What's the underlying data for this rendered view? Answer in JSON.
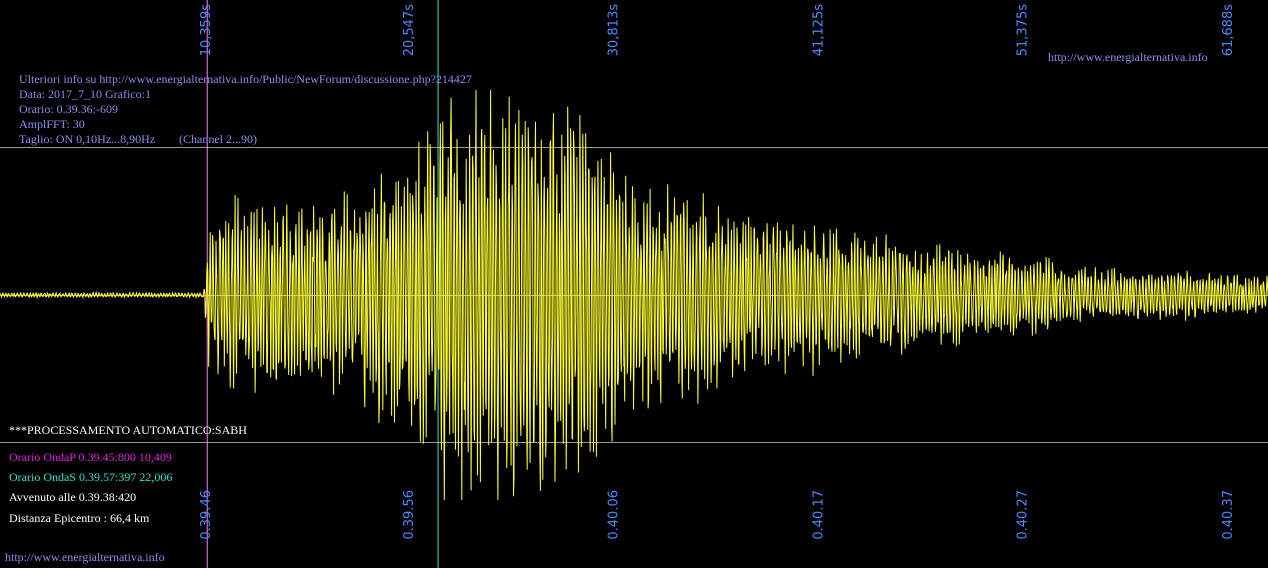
{
  "info": {
    "line1": "Ulteriori info su http://www.energialternativa.info/Public/NewForum/discussione.php?214427",
    "line2": "Data: 2017_7_10 Grafico:1",
    "line3": "Orario: 0.39.36:-609",
    "line4": "AmplFFT: 30",
    "line5": "Taglio: ON 0,10Hz...8,90Hz",
    "channel": "(Channel 2...90)"
  },
  "link_top": "http://www.energialternativa.info",
  "link_bottom": "http://www.energialternativa.info",
  "processing": "***PROCESSAMENTO AUTOMATICO:SABH",
  "wave_p": "Orario OndaP 0.39.45:800  10,409",
  "wave_s": "Orario OndaS 0.39.57:397  22,006",
  "occurred": "Avvenuto alle 0.39.38:420",
  "distance": "Distanza Epicentro : 66,4 km",
  "colors": {
    "background": "#000000",
    "trace": "#ffff33",
    "p_marker": "#ff80ff",
    "s_marker": "#40e0d0",
    "tick_text": "#4a8cff",
    "grid": "#9a9a9a"
  },
  "chart_data": {
    "type": "line",
    "title": "",
    "xlabel": "",
    "ylabel": "",
    "top_ticks": [
      "10,359s",
      "20,547s",
      "30,813s",
      "41,125s",
      "51,375s",
      "61,688s"
    ],
    "top_tick_values": [
      10.359,
      20.547,
      30.813,
      41.125,
      51.375,
      61.688
    ],
    "bottom_ticks": [
      "0.39.46",
      "0.39.56",
      "0.40.06",
      "0.40.17",
      "0.40.27",
      "0.40.37"
    ],
    "xlim": [
      0,
      63.7
    ],
    "ylim": [
      -1,
      1
    ],
    "grid": true,
    "p_wave_s": 10.409,
    "s_wave_s": 22.006,
    "envelope": {
      "x": [
        0,
        10.2,
        10.5,
        12,
        15,
        18,
        20,
        22,
        24,
        26,
        28,
        30,
        32,
        35,
        38,
        42,
        46,
        50,
        55,
        60,
        63.7
      ],
      "y": [
        0.01,
        0.01,
        0.3,
        0.4,
        0.4,
        0.45,
        0.55,
        0.8,
        0.85,
        0.9,
        0.85,
        0.75,
        0.5,
        0.45,
        0.35,
        0.3,
        0.22,
        0.2,
        0.12,
        0.1,
        0.08
      ]
    }
  }
}
